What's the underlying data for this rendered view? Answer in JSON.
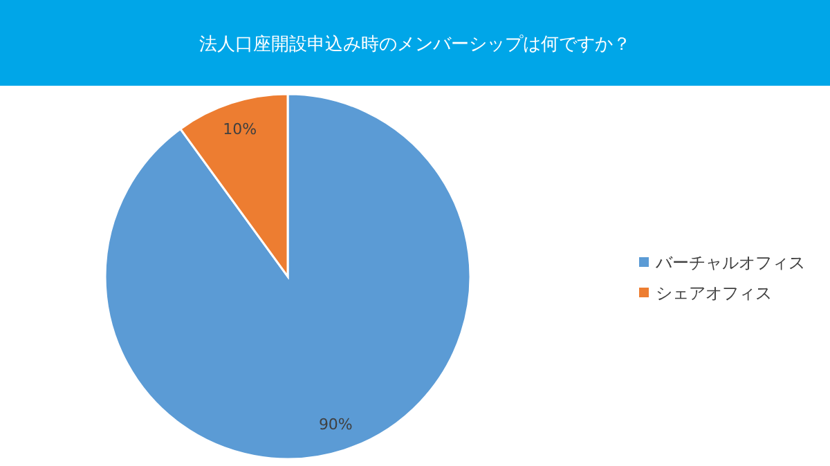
{
  "chart_data": {
    "type": "pie",
    "title": "法人口座開設申込み時のメンバーシップは何ですか？",
    "categories": [
      "バーチャルオフィス",
      "シェアオフィス"
    ],
    "values": [
      90,
      10
    ],
    "colors": [
      "#5b9bd5",
      "#ed7d31"
    ],
    "value_labels": [
      "90%",
      "10%"
    ],
    "legend": "right"
  }
}
